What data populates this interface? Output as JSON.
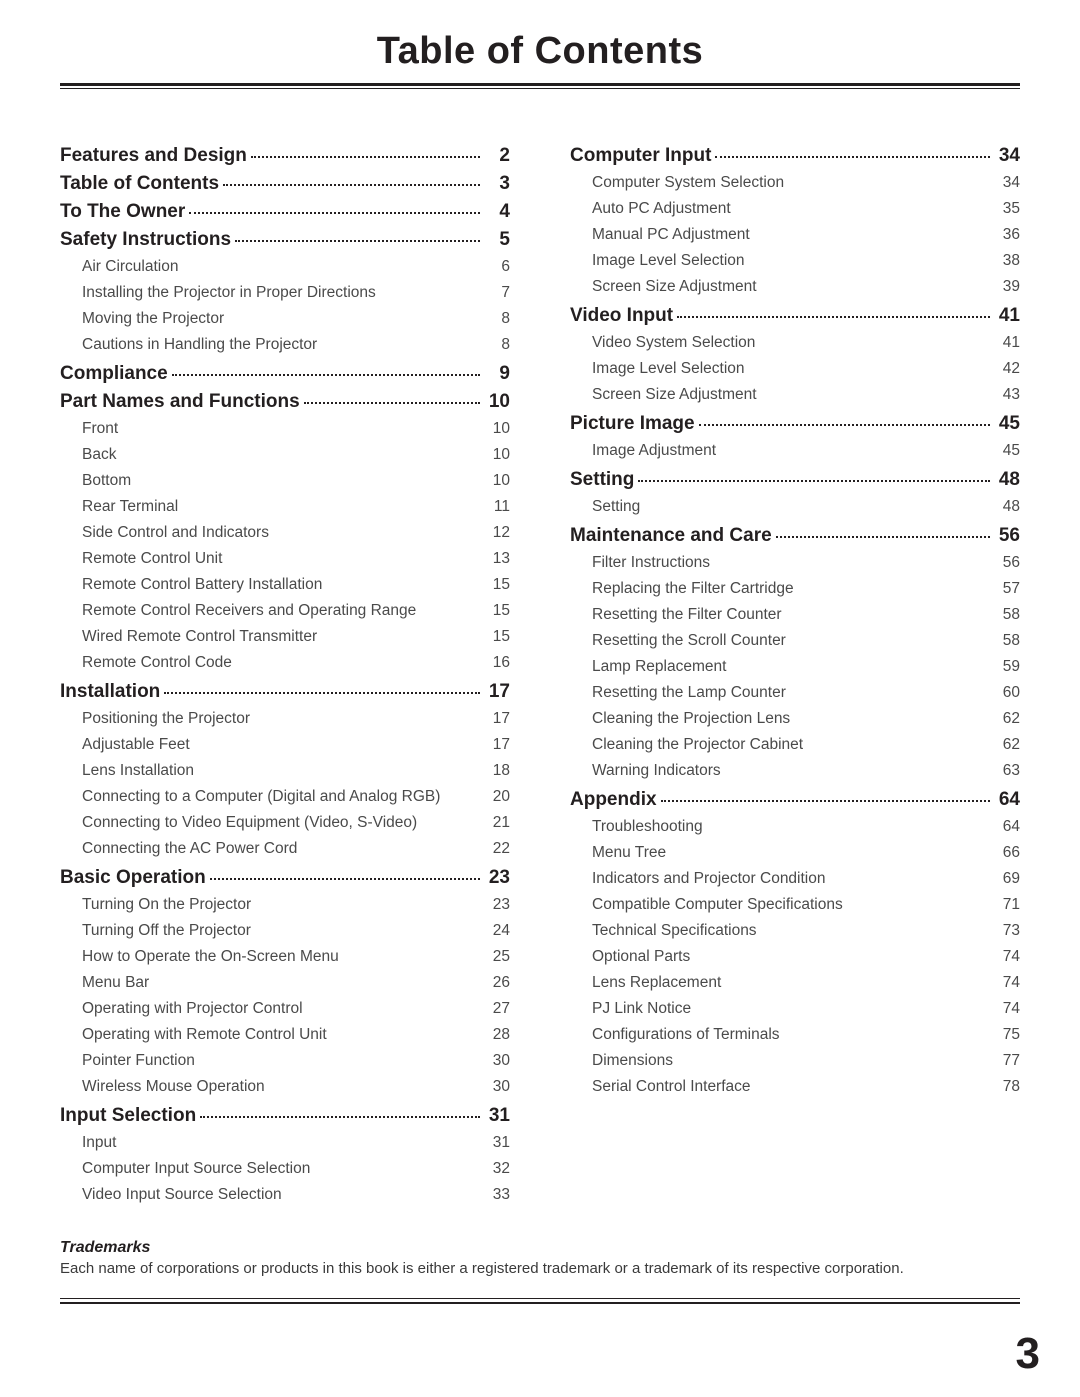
{
  "title": "Table of Contents",
  "page_number": "3",
  "trademarks": {
    "heading": "Trademarks",
    "text": "Each name of corporations or products in this book is either a registered trademark or a trademark of its respective corporation."
  },
  "left_col": [
    {
      "type": "section",
      "label": "Features and Design",
      "page": "2"
    },
    {
      "type": "section",
      "label": "Table of Contents",
      "page": "3"
    },
    {
      "type": "section",
      "label": "To The Owner",
      "page": "4"
    },
    {
      "type": "section",
      "label": "Safety Instructions",
      "page": "5"
    },
    {
      "type": "sub",
      "label": "Air Circulation",
      "page": "6"
    },
    {
      "type": "sub",
      "label": "Installing the Projector in Proper Directions",
      "page": "7"
    },
    {
      "type": "sub",
      "label": "Moving the Projector",
      "page": "8"
    },
    {
      "type": "sub",
      "label": "Cautions in Handling the Projector",
      "page": "8"
    },
    {
      "type": "section",
      "label": "Compliance",
      "page": "9"
    },
    {
      "type": "section",
      "label": "Part Names and Functions",
      "page": "10"
    },
    {
      "type": "sub",
      "label": "Front",
      "page": "10"
    },
    {
      "type": "sub",
      "label": "Back",
      "page": "10"
    },
    {
      "type": "sub",
      "label": "Bottom",
      "page": "10"
    },
    {
      "type": "sub",
      "label": "Rear Terminal",
      "page": "11"
    },
    {
      "type": "sub",
      "label": "Side Control and Indicators",
      "page": "12"
    },
    {
      "type": "sub",
      "label": "Remote Control Unit",
      "page": "13"
    },
    {
      "type": "sub",
      "label": "Remote Control Battery Installation",
      "page": "15"
    },
    {
      "type": "sub",
      "label": "Remote Control Receivers and Operating Range",
      "page": "15"
    },
    {
      "type": "sub",
      "label": "Wired Remote Control Transmitter",
      "page": "15"
    },
    {
      "type": "sub",
      "label": "Remote Control Code",
      "page": "16"
    },
    {
      "type": "section",
      "label": "Installation",
      "page": "17"
    },
    {
      "type": "sub",
      "label": "Positioning the Projector",
      "page": "17"
    },
    {
      "type": "sub",
      "label": "Adjustable Feet",
      "page": "17"
    },
    {
      "type": "sub",
      "label": "Lens Installation",
      "page": "18"
    },
    {
      "type": "sub",
      "label": "Connecting to a Computer (Digital and Analog RGB)",
      "page": "20"
    },
    {
      "type": "sub",
      "label": "Connecting to Video Equipment (Video, S-Video)",
      "page": "21"
    },
    {
      "type": "sub",
      "label": "Connecting the AC Power Cord",
      "page": "22"
    },
    {
      "type": "section",
      "label": "Basic Operation",
      "page": "23"
    },
    {
      "type": "sub",
      "label": "Turning On the Projector",
      "page": "23"
    },
    {
      "type": "sub",
      "label": "Turning Off the  Projector",
      "page": "24"
    },
    {
      "type": "sub",
      "label": "How to Operate the On-Screen Menu",
      "page": "25"
    },
    {
      "type": "sub",
      "label": "Menu Bar",
      "page": "26"
    },
    {
      "type": "sub",
      "label": "Operating with Projector Control",
      "page": "27"
    },
    {
      "type": "sub",
      "label": "Operating with Remote Control Unit",
      "page": "28"
    },
    {
      "type": "sub",
      "label": "Pointer Function",
      "page": "30"
    },
    {
      "type": "sub",
      "label": "Wireless Mouse Operation",
      "page": "30"
    },
    {
      "type": "section",
      "label": "Input Selection",
      "page": "31"
    },
    {
      "type": "sub",
      "label": "Input",
      "page": "31"
    },
    {
      "type": "sub",
      "label": "Computer Input Source Selection",
      "page": "32"
    },
    {
      "type": "sub",
      "label": "Video Input Source Selection",
      "page": "33"
    }
  ],
  "right_col": [
    {
      "type": "section",
      "label": "Computer Input",
      "page": "34"
    },
    {
      "type": "sub",
      "label": "Computer System Selection",
      "page": "34"
    },
    {
      "type": "sub",
      "label": "Auto PC Adjustment",
      "page": "35"
    },
    {
      "type": "sub",
      "label": "Manual PC Adjustment",
      "page": "36"
    },
    {
      "type": "sub",
      "label": "Image Level Selection",
      "page": "38"
    },
    {
      "type": "sub",
      "label": "Screen Size Adjustment",
      "page": "39"
    },
    {
      "type": "section",
      "label": "Video Input",
      "page": "41"
    },
    {
      "type": "sub",
      "label": "Video System Selection",
      "page": "41"
    },
    {
      "type": "sub",
      "label": "Image Level Selection",
      "page": "42"
    },
    {
      "type": "sub",
      "label": "Screen Size Adjustment",
      "page": "43"
    },
    {
      "type": "section",
      "label": "Picture Image",
      "page": "45"
    },
    {
      "type": "sub",
      "label": "Image Adjustment",
      "page": "45"
    },
    {
      "type": "section",
      "label": "Setting",
      "page": "48"
    },
    {
      "type": "sub",
      "label": "Setting",
      "page": "48"
    },
    {
      "type": "section",
      "label": "Maintenance and Care",
      "page": "56"
    },
    {
      "type": "sub",
      "label": "Filter Instructions",
      "page": "56"
    },
    {
      "type": "sub",
      "label": "Replacing the Filter Cartridge",
      "page": "57"
    },
    {
      "type": "sub",
      "label": "Resetting the Filter Counter",
      "page": "58"
    },
    {
      "type": "sub",
      "label": "Resetting the Scroll Counter",
      "page": "58"
    },
    {
      "type": "sub",
      "label": "Lamp Replacement",
      "page": "59"
    },
    {
      "type": "sub",
      "label": "Resetting the Lamp Counter",
      "page": "60"
    },
    {
      "type": "sub",
      "label": "Cleaning the Projection Lens",
      "page": "62"
    },
    {
      "type": "sub",
      "label": "Cleaning the Projector Cabinet",
      "page": "62"
    },
    {
      "type": "sub",
      "label": "Warning Indicators",
      "page": "63"
    },
    {
      "type": "section",
      "label": "Appendix",
      "page": "64"
    },
    {
      "type": "sub",
      "label": "Troubleshooting",
      "page": "64"
    },
    {
      "type": "sub",
      "label": "Menu Tree",
      "page": "66"
    },
    {
      "type": "sub",
      "label": "Indicators and Projector Condition",
      "page": "69"
    },
    {
      "type": "sub",
      "label": "Compatible Computer Specifications",
      "page": "71"
    },
    {
      "type": "sub",
      "label": "Technical Specifications",
      "page": "73"
    },
    {
      "type": "sub",
      "label": "Optional Parts",
      "page": "74"
    },
    {
      "type": "sub",
      "label": "Lens Replacement",
      "page": "74"
    },
    {
      "type": "sub",
      "label": "PJ Link Notice",
      "page": "74"
    },
    {
      "type": "sub",
      "label": "Configurations of Terminals",
      "page": "75"
    },
    {
      "type": "sub",
      "label": "Dimensions",
      "page": "77"
    },
    {
      "type": "sub",
      "label": "Serial Control Interface",
      "page": "78"
    }
  ]
}
